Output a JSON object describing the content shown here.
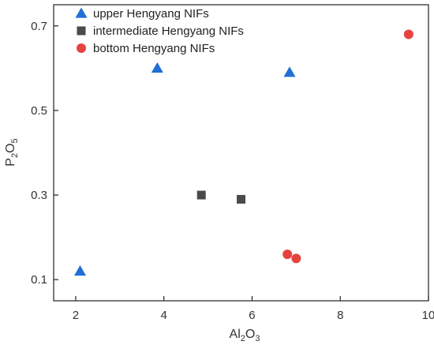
{
  "chart_data": {
    "type": "scatter",
    "title": "",
    "xlabel": {
      "base": "Al",
      "sub1": "2",
      "mid": "O",
      "sub2": "3"
    },
    "ylabel": {
      "base": "P",
      "sub1": "2",
      "mid": "O",
      "sub2": "5"
    },
    "xlim": [
      1.5,
      10
    ],
    "ylim": [
      0.05,
      0.75
    ],
    "xticks": [
      2,
      4,
      6,
      8,
      10
    ],
    "yticks": [
      0.1,
      0.3,
      0.5,
      0.7
    ],
    "xtick_labels": [
      "2",
      "4",
      "6",
      "8",
      "10"
    ],
    "ytick_labels": [
      "0.1",
      "0.3",
      "0.5",
      "0.7"
    ],
    "grid": false,
    "legend_position": "top-left",
    "series": [
      {
        "name": "upper Hengyang NIFs",
        "marker": "triangle",
        "color": "#1f6fd6",
        "points": [
          [
            2.1,
            0.12
          ],
          [
            3.85,
            0.6
          ],
          [
            6.85,
            0.59
          ]
        ]
      },
      {
        "name": "intermediate Hengyang NIFs",
        "marker": "square",
        "color": "#4a4a4a",
        "points": [
          [
            4.85,
            0.3
          ],
          [
            5.75,
            0.29
          ]
        ]
      },
      {
        "name": "bottom Hengyang NIFs",
        "marker": "circle",
        "color": "#e8423f",
        "points": [
          [
            9.55,
            0.68
          ],
          [
            6.8,
            0.16
          ],
          [
            7.0,
            0.15
          ]
        ]
      }
    ]
  }
}
